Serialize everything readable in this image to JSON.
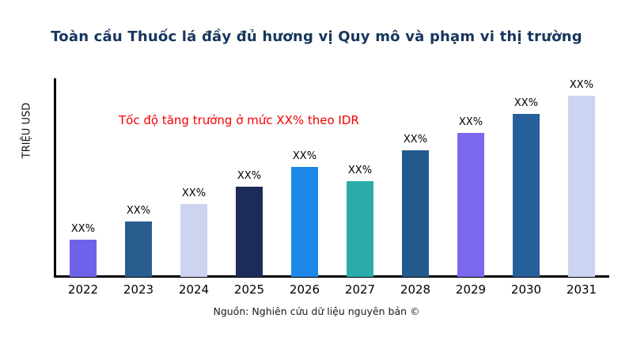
{
  "title": "Toàn cầu Thuốc lá đầy đủ hương vị Quy mô và phạm vi thị trường",
  "annotation": "Tốc độ tăng trưởng ở mức XX% theo IDR",
  "source": "Nguồn: Nghiên cứu dữ liệu nguyên bản ©",
  "colors": {
    "title": "#17365d",
    "annotation": "#f40000",
    "axis": "#000000",
    "background": "#ffffff"
  },
  "chart_data": {
    "type": "bar",
    "title": "Toàn cầu Thuốc lá đầy đủ hương vị Quy mô và phạm vi thị trường",
    "xlabel": "",
    "ylabel": "TRIỆU USD",
    "categories": [
      "2022",
      "2023",
      "2024",
      "2025",
      "2026",
      "2027",
      "2028",
      "2029",
      "2030",
      "2031"
    ],
    "values": [
      47,
      70,
      92,
      114,
      139,
      121,
      160,
      182,
      206,
      229
    ],
    "value_labels": [
      "XX%",
      "XX%",
      "XX%",
      "XX%",
      "XX%",
      "XX%",
      "XX%",
      "XX%",
      "XX%",
      "XX%"
    ],
    "bar_colors": [
      "#6e63e8",
      "#2a5d8f",
      "#cdd4f1",
      "#1c2b5a",
      "#1e88e8",
      "#2aacad",
      "#235a8c",
      "#7a68ee",
      "#25609a",
      "#cdd4f1"
    ],
    "ylim": [
      0,
      250
    ],
    "grid": false,
    "legend": "none",
    "annotation": "Tốc độ tăng trưởng ở mức XX% theo IDR"
  }
}
